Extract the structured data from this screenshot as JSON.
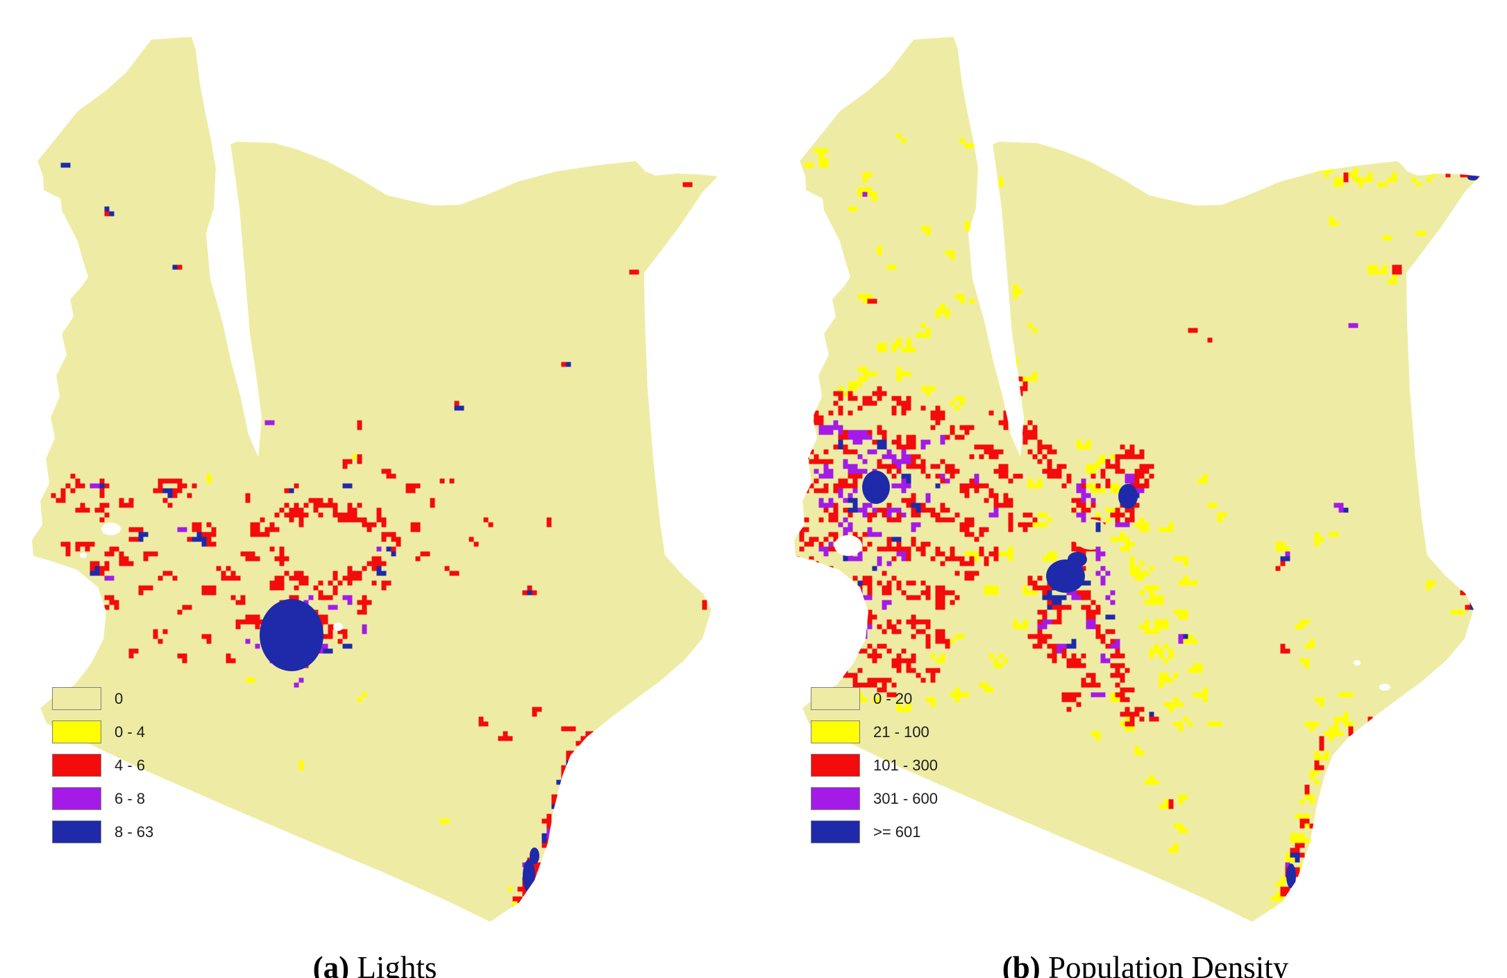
{
  "figure": {
    "type": "map-pair",
    "country": "Kenya",
    "palette": {
      "base": "#EEECA4",
      "yellow": "#FFFF00",
      "red": "#F40B0B",
      "purple": "#A41BE8",
      "blue": "#1E2AAA",
      "white": "#FFFFFF",
      "legend_border": "#7f7f7f",
      "text": "#1c1c1c"
    },
    "maps": [
      {
        "id": "a",
        "caption_label": "(a)",
        "caption_text": "Lights",
        "legend": [
          {
            "label": "0",
            "color_key": "base"
          },
          {
            "label": "0 - 4",
            "color_key": "yellow"
          },
          {
            "label": "4 - 6",
            "color_key": "red"
          },
          {
            "label": "6 - 8",
            "color_key": "purple"
          },
          {
            "label": "8 - 63",
            "color_key": "blue"
          }
        ]
      },
      {
        "id": "b",
        "caption_label": "(b)",
        "caption_text": "Population Density",
        "legend": [
          {
            "label": "0 - 20",
            "color_key": "base"
          },
          {
            "label": "21 - 100",
            "color_key": "yellow"
          },
          {
            "label": "101 - 300",
            "color_key": "red"
          },
          {
            "label": "301 - 600",
            "color_key": "purple"
          },
          {
            "label": ">= 601",
            "color_key": "blue"
          }
        ]
      }
    ]
  }
}
